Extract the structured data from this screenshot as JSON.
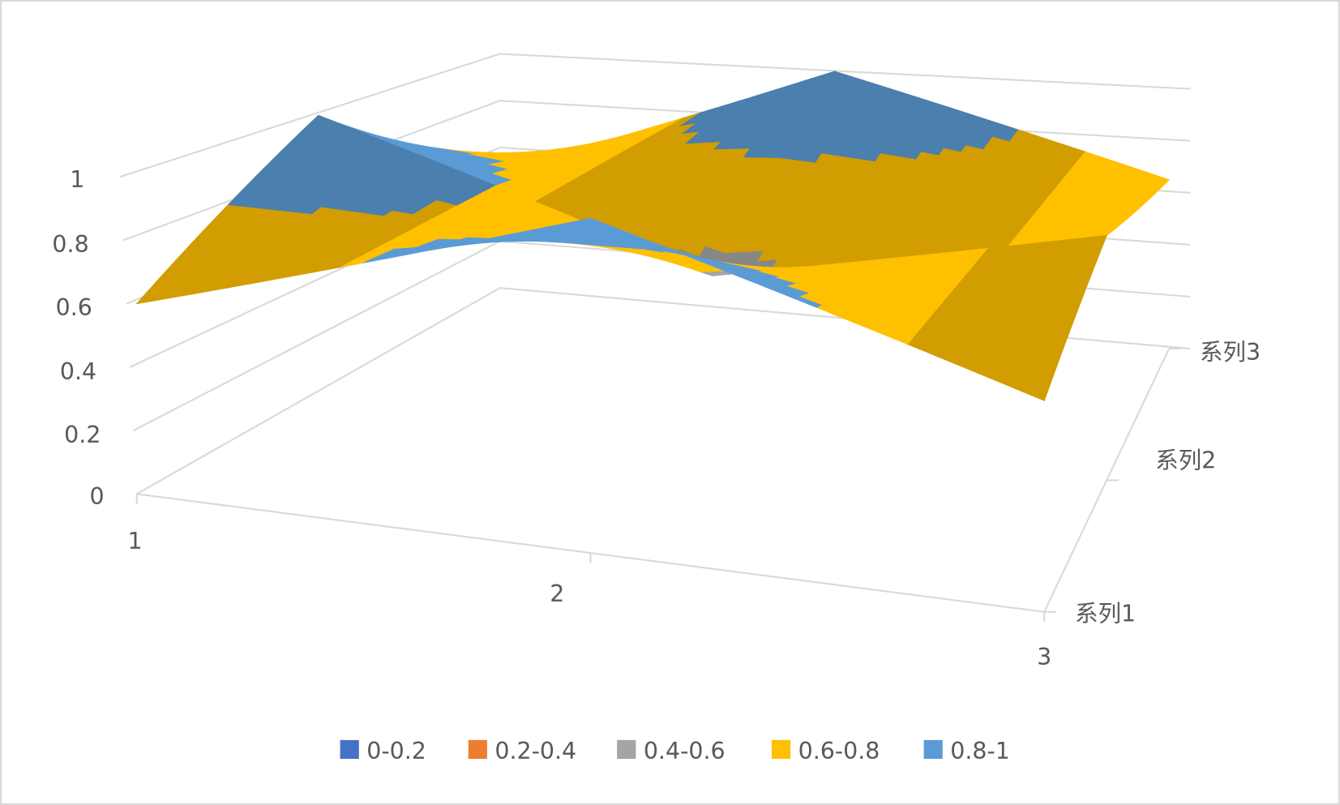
{
  "chart_data": {
    "type": "surface",
    "categories": [
      "1",
      "2",
      "3"
    ],
    "series": [
      {
        "name": "系列1",
        "values": [
          0.6,
          1.0,
          0.6
        ]
      },
      {
        "name": "系列2",
        "values": [
          1.0,
          0.55,
          0.8
        ]
      },
      {
        "name": "系列3",
        "values": [
          0.5,
          1.0,
          0.65
        ]
      }
    ],
    "value_ticks": [
      "0",
      "0.2",
      "0.4",
      "0.6",
      "0.8",
      "1"
    ],
    "zlim": [
      0,
      1
    ],
    "grid": true,
    "legend_position": "bottom",
    "legend": [
      {
        "label": "0-0.2",
        "color": "#4472C4"
      },
      {
        "label": "0.2-0.4",
        "color": "#ED7D31"
      },
      {
        "label": "0.4-0.6",
        "color": "#A5A5A5"
      },
      {
        "label": "0.6-0.8",
        "color": "#FFC000"
      },
      {
        "label": "0.8-1",
        "color": "#5B9BD5"
      }
    ]
  }
}
